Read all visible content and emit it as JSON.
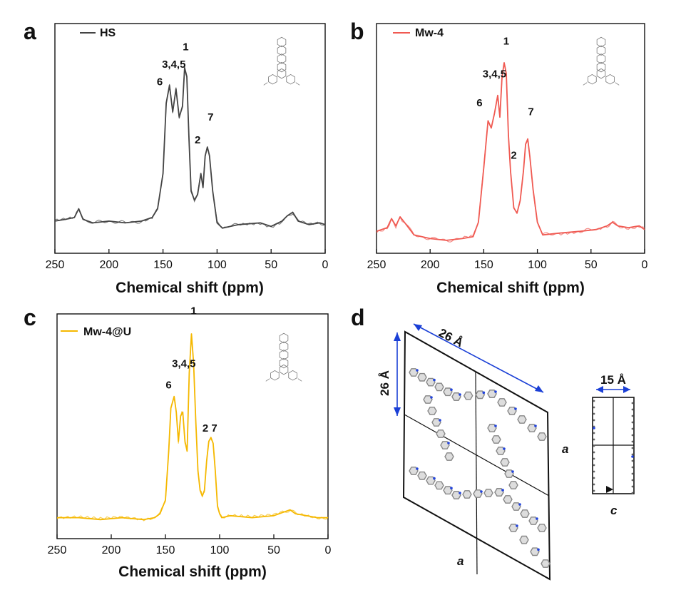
{
  "chart_data": [
    {
      "panel": "a",
      "type": "line",
      "xlabel": "Chemical shift (ppm)",
      "xlim": [
        250,
        0
      ],
      "xticks": [
        250,
        200,
        150,
        100,
        50,
        0
      ],
      "x_reversed": true,
      "y_ticks_shown": false,
      "series": [
        {
          "name": "HS",
          "color": "#444444"
        }
      ],
      "x": [
        250,
        240,
        232,
        228,
        224,
        215,
        200,
        185,
        170,
        160,
        155,
        150,
        147,
        144,
        141,
        138,
        135,
        132,
        130,
        128,
        126,
        124,
        121,
        118,
        115,
        113,
        111,
        109,
        107,
        104,
        100,
        95,
        80,
        60,
        50,
        40,
        35,
        30,
        25,
        15,
        5,
        0
      ],
      "y": [
        0.13,
        0.14,
        0.15,
        0.2,
        0.14,
        0.12,
        0.13,
        0.12,
        0.13,
        0.15,
        0.2,
        0.4,
        0.8,
        0.9,
        0.75,
        0.88,
        0.72,
        0.78,
        1.0,
        0.95,
        0.6,
        0.3,
        0.25,
        0.28,
        0.4,
        0.32,
        0.5,
        0.55,
        0.5,
        0.3,
        0.12,
        0.09,
        0.11,
        0.12,
        0.1,
        0.13,
        0.16,
        0.18,
        0.13,
        0.11,
        0.12,
        0.11
      ],
      "peak_labels": [
        {
          "text": "1",
          "x": 129,
          "y": 1.1
        },
        {
          "text": "3,4,5",
          "x": 140,
          "y": 1.0
        },
        {
          "text": "6",
          "x": 153,
          "y": 0.9
        },
        {
          "text": "7",
          "x": 106,
          "y": 0.7
        },
        {
          "text": "2",
          "x": 118,
          "y": 0.57
        }
      ]
    },
    {
      "panel": "b",
      "type": "line",
      "xlabel": "Chemical shift (ppm)",
      "xlim": [
        250,
        0
      ],
      "xticks": [
        250,
        200,
        150,
        100,
        50,
        0
      ],
      "x_reversed": true,
      "y_ticks_shown": false,
      "series": [
        {
          "name": "Mw-4",
          "color": "#f05a52"
        }
      ],
      "x": [
        250,
        240,
        236,
        232,
        228,
        224,
        215,
        200,
        185,
        170,
        160,
        155,
        150,
        146,
        143,
        140,
        137,
        135,
        133,
        131,
        129,
        127,
        125,
        122,
        119,
        116,
        113,
        111,
        109,
        107,
        104,
        100,
        95,
        80,
        60,
        45,
        35,
        30,
        25,
        15,
        5,
        0
      ],
      "y": [
        0.07,
        0.09,
        0.14,
        0.1,
        0.15,
        0.12,
        0.05,
        0.03,
        0.02,
        0.03,
        0.04,
        0.12,
        0.42,
        0.68,
        0.64,
        0.72,
        0.82,
        0.7,
        0.92,
        1.0,
        0.94,
        0.6,
        0.4,
        0.2,
        0.17,
        0.24,
        0.4,
        0.55,
        0.58,
        0.48,
        0.3,
        0.12,
        0.05,
        0.06,
        0.07,
        0.08,
        0.1,
        0.12,
        0.1,
        0.09,
        0.1,
        0.08
      ],
      "peak_labels": [
        {
          "text": "1",
          "x": 129,
          "y": 1.1
        },
        {
          "text": "3,4,5",
          "x": 140,
          "y": 0.92
        },
        {
          "text": "6",
          "x": 154,
          "y": 0.76
        },
        {
          "text": "7",
          "x": 106,
          "y": 0.71
        },
        {
          "text": "2",
          "x": 122,
          "y": 0.47
        }
      ]
    },
    {
      "panel": "c",
      "type": "line",
      "xlabel": "Chemical shift (ppm)",
      "xlim": [
        250,
        0
      ],
      "xticks": [
        250,
        200,
        150,
        100,
        50,
        0
      ],
      "x_reversed": true,
      "y_ticks_shown": false,
      "series": [
        {
          "name": "Mw-4@U",
          "color": "#f5b800"
        }
      ],
      "x": [
        250,
        230,
        210,
        190,
        170,
        160,
        155,
        150,
        147,
        145,
        142,
        140,
        138,
        136,
        134,
        132,
        130,
        128,
        126,
        124,
        122,
        120,
        118,
        116,
        114,
        112,
        110,
        108,
        106,
        104,
        102,
        100,
        98,
        90,
        70,
        50,
        40,
        35,
        30,
        20,
        10,
        0
      ],
      "y": [
        0.06,
        0.06,
        0.05,
        0.06,
        0.05,
        0.06,
        0.08,
        0.15,
        0.4,
        0.62,
        0.68,
        0.6,
        0.45,
        0.58,
        0.6,
        0.45,
        0.4,
        0.8,
        1.0,
        0.85,
        0.55,
        0.3,
        0.2,
        0.17,
        0.2,
        0.35,
        0.45,
        0.47,
        0.44,
        0.3,
        0.12,
        0.08,
        0.06,
        0.07,
        0.06,
        0.07,
        0.09,
        0.1,
        0.08,
        0.07,
        0.06,
        0.06
      ],
      "peak_labels": [
        {
          "text": "1",
          "x": 124,
          "y": 1.1
        },
        {
          "text": "3,4,5",
          "x": 133,
          "y": 0.83
        },
        {
          "text": "6",
          "x": 147,
          "y": 0.72
        },
        {
          "text": "2 7",
          "x": 109,
          "y": 0.5
        }
      ]
    }
  ],
  "panels": {
    "a": {
      "letter": "a"
    },
    "b": {
      "letter": "b"
    },
    "c": {
      "letter": "c"
    },
    "d": {
      "letter": "d",
      "dim_horizontal": "26 Å",
      "dim_vertical": "26 Å",
      "dim_side": "15 Å",
      "axis_a_right": "a",
      "axis_a_bottom": "a",
      "axis_c": "c",
      "colors": {
        "frame": "#111111",
        "dimension": "#1a3fd6",
        "framework": "#888888",
        "nitrogen": "#2244dd"
      }
    }
  }
}
